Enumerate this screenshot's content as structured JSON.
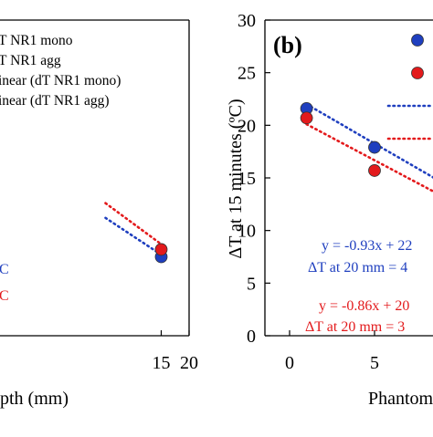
{
  "chart_data": [
    {
      "panel": "left (a), cropped",
      "type": "scatter",
      "xlabel": "pth (mm)",
      "ylabel": "",
      "xlim": [
        0,
        20
      ],
      "xticks": [
        "15",
        "20"
      ],
      "legend_placement": "top-left",
      "legend": [
        "T NR1 mono",
        "T NR1 agg",
        "inear (dT NR1 mono)",
        "inear (dT NR1 agg)"
      ],
      "series": [
        {
          "name": "T NR1 mono",
          "color": "#1f3fbf",
          "points": [
            {
              "x": 15,
              "y": 7.5
            }
          ],
          "fit": {
            "x": [
              5,
              15
            ],
            "y": [
              11.2,
              7.7
            ]
          }
        },
        {
          "name": "T NR1 agg",
          "color": "#e31a1c",
          "points": [
            {
              "x": 15,
              "y": 8.2
            }
          ],
          "fit": {
            "x": [
              5,
              15
            ],
            "y": [
              12.6,
              8.7
            ]
          }
        }
      ],
      "annotations": [
        {
          "text": "C",
          "color": "#1f3fbf"
        },
        {
          "text": "C",
          "color": "#e31a1c"
        }
      ]
    },
    {
      "panel": "(b)",
      "type": "scatter",
      "xlabel": "Phantom",
      "ylabel": "ΔT at 15 minutes (ºC)",
      "xlim": [
        0,
        10
      ],
      "ylim": [
        0,
        30
      ],
      "xticks": [
        0,
        5
      ],
      "yticks": [
        0,
        5,
        10,
        15,
        20,
        25,
        30
      ],
      "legend_placement": "top-right",
      "series": [
        {
          "name": "",
          "color": "#1f3fbf",
          "points": [
            {
              "x": 1,
              "y": 21.6
            },
            {
              "x": 5,
              "y": 17.9
            }
          ],
          "fit": {
            "x": [
              1,
              10
            ],
            "y": [
              22.0,
              13.6
            ]
          }
        },
        {
          "name": "",
          "color": "#e31a1c",
          "points": [
            {
              "x": 1,
              "y": 20.7
            },
            {
              "x": 5,
              "y": 15.7
            }
          ],
          "fit": {
            "x": [
              1,
              10
            ],
            "y": [
              20.1,
              12.4
            ]
          }
        }
      ],
      "annotations": [
        {
          "text": "y = -0.93x + 22",
          "color": "#1f3fbf"
        },
        {
          "text": "ΔT at 20 mm = 4",
          "color": "#1f3fbf"
        },
        {
          "text": "y = -0.86x + 20",
          "color": "#e31a1c"
        },
        {
          "text": "ΔT at 20 mm = 3",
          "color": "#e31a1c"
        }
      ]
    }
  ],
  "panel_b_label": "(b)"
}
